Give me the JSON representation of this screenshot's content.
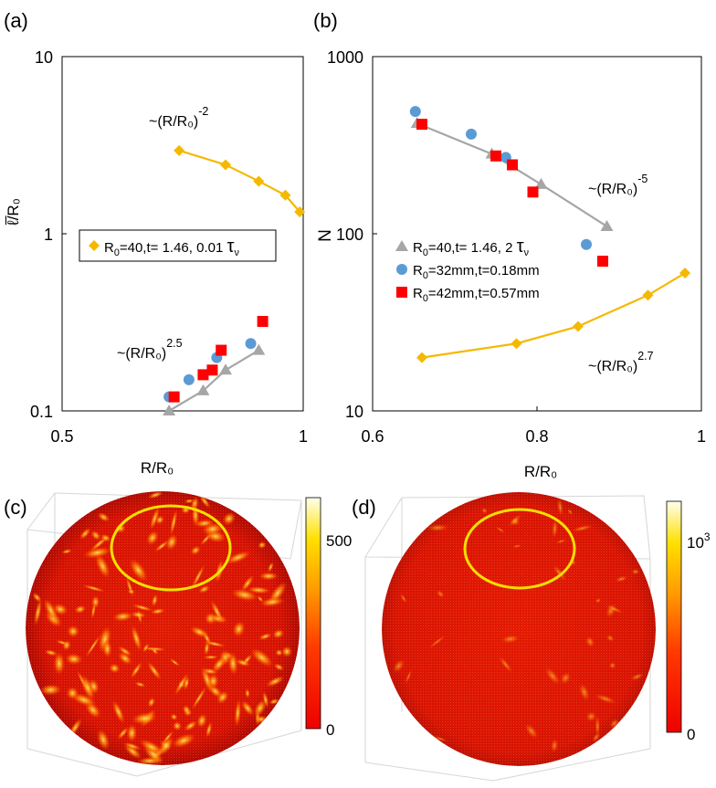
{
  "panels": {
    "a": {
      "letter": "(a)"
    },
    "b": {
      "letter": "(b)"
    },
    "c": {
      "letter": "(c)",
      "colorbar": {
        "max_label": "500",
        "min_label": "0"
      }
    },
    "d": {
      "letter": "(d)",
      "colorbar": {
        "max_base": "10",
        "max_exp": "3",
        "min_label": "0"
      }
    }
  },
  "chart_data": [
    {
      "id": "a",
      "type": "scatter",
      "scale": "log-log",
      "xlim": [
        0.5,
        1
      ],
      "ylim": [
        0.1,
        10
      ],
      "xticks": [
        "0.5",
        "1"
      ],
      "yticks": [
        "0.1",
        "1",
        "10"
      ],
      "xlabel": "R/R₀",
      "ylabel": "ℓ̅/R₀",
      "legend": "inset",
      "series": [
        {
          "name": "R0=40,t= 1.46, 0.01 τν",
          "marker": "diamond",
          "color": "#F5B800",
          "line": true,
          "x": [
            0.7,
            0.8,
            0.88,
            0.95,
            0.99
          ],
          "y": [
            2.95,
            2.45,
            1.98,
            1.65,
            1.33
          ]
        },
        {
          "marker": "triangle",
          "color": "#A6A6A6",
          "line": true,
          "x": [
            0.68,
            0.75,
            0.8,
            0.88
          ],
          "y": [
            0.1,
            0.13,
            0.17,
            0.22
          ]
        },
        {
          "marker": "circle",
          "color": "#5B9BD5",
          "line": false,
          "x": [
            0.68,
            0.72,
            0.78,
            0.86
          ],
          "y": [
            0.12,
            0.15,
            0.2,
            0.24
          ]
        },
        {
          "marker": "square",
          "color": "#FF0000",
          "line": false,
          "x": [
            0.69,
            0.75,
            0.77,
            0.79,
            0.89
          ],
          "y": [
            0.12,
            0.16,
            0.17,
            0.22,
            0.32
          ]
        }
      ],
      "legend_entry": {
        "prefix": "R",
        "sub": "0",
        "text": "=40,t= 1.46, 0.01 ",
        "tau": "τ",
        "tau_sub": "ν"
      },
      "annotations": [
        {
          "base": "~(R/R₀)",
          "exp": "-2"
        },
        {
          "base": "~(R/R₀)",
          "exp": "2.5"
        }
      ]
    },
    {
      "id": "b",
      "type": "scatter",
      "scale": "log-y",
      "xlim": [
        0.6,
        1
      ],
      "ylim": [
        10,
        1000
      ],
      "xticks": [
        "0.6",
        "0.8",
        "1"
      ],
      "yticks": [
        "10",
        "100",
        "1000"
      ],
      "xlabel": "R/R₀",
      "ylabel": "N",
      "legend": "middle-left",
      "series": [
        {
          "name": "R0=40,t= 1.46, 2 τν",
          "marker": "triangle",
          "color": "#A6A6A6",
          "line": true,
          "x": [
            0.654,
            0.745,
            0.805,
            0.885
          ],
          "y": [
            420,
            282,
            190,
            110
          ]
        },
        {
          "name": "R0=32mm,t=0.18mm",
          "marker": "circle",
          "color": "#5B9BD5",
          "line": false,
          "x": [
            0.652,
            0.72,
            0.762,
            0.86
          ],
          "y": [
            490,
            365,
            270,
            87
          ]
        },
        {
          "name": "R0=42mm,t=0.57mm",
          "marker": "square",
          "color": "#FF0000",
          "line": false,
          "x": [
            0.66,
            0.75,
            0.77,
            0.795,
            0.88
          ],
          "y": [
            415,
            275,
            245,
            172,
            70
          ]
        },
        {
          "marker": "diamond",
          "color": "#F5B800",
          "line": true,
          "x": [
            0.66,
            0.775,
            0.85,
            0.935,
            0.98
          ],
          "y": [
            20,
            24,
            30,
            45,
            60
          ]
        }
      ],
      "legend_entries": [
        {
          "marker": "triangle",
          "color": "#A6A6A6",
          "prefix": "R",
          "sub": "0",
          "text": "=40,t= 1.46, 2 ",
          "tau": "τ",
          "tau_sub": "ν"
        },
        {
          "marker": "circle",
          "color": "#5B9BD5",
          "prefix": "R",
          "sub": "0",
          "text": "=32mm,t=0.18mm"
        },
        {
          "marker": "square",
          "color": "#FF0000",
          "prefix": "R",
          "sub": "0",
          "text": "=42mm,t=0.57mm"
        }
      ],
      "annotations": [
        {
          "base": "~(R/R₀)",
          "exp": "-5"
        },
        {
          "base": "~(R/R₀)",
          "exp": "2.7"
        }
      ]
    }
  ]
}
